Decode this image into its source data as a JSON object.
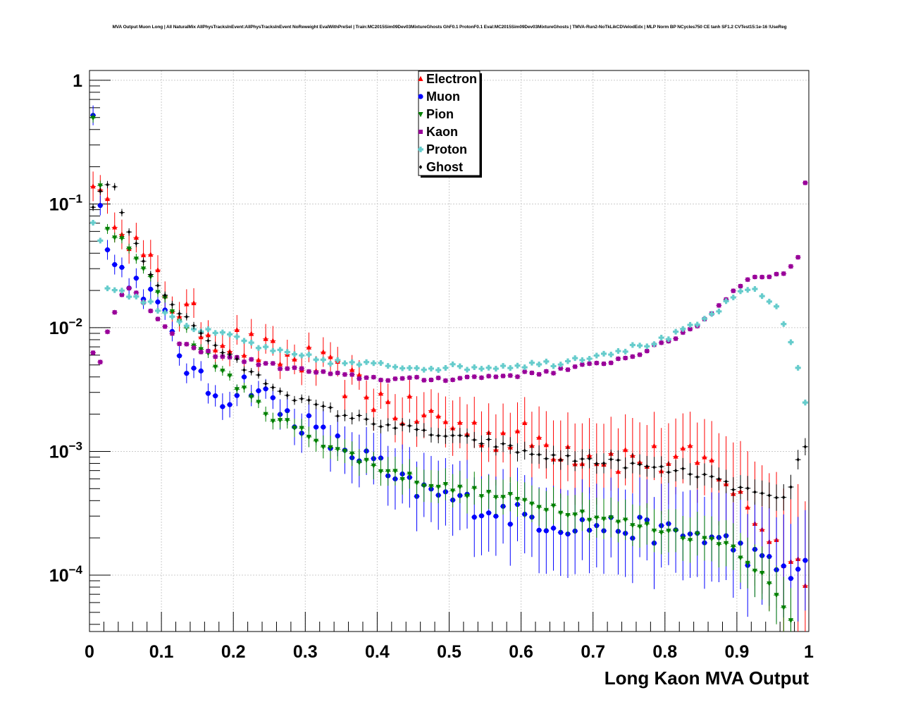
{
  "chart_data": {
    "type": "scatter",
    "title": "MVA Output Muon Long | All NaturalMix AllPhysTracksInEvent:AllPhysTracksInEvent NoReweight EvalWithPreSel | Train:MC2015Sim09Dev03MixtureGhosts GhF0.1 ProtonF0.1 Eval:MC2015Sim09Dev03MixtureGhosts | TMVA-Run2-NoTkLikCDVelodEdx | MLP Norm BP NCycles750 CE tanh SF1.2 CVTest15:1e-16 !UseReg",
    "xlabel": "Long Kaon MVA Output",
    "ylabel": "",
    "xlim": [
      0,
      1
    ],
    "ylim": [
      3.5e-05,
      1.2
    ],
    "y_scale": "log",
    "x_ticks": [
      "0",
      "0.1",
      "0.2",
      "0.3",
      "0.4",
      "0.5",
      "0.6",
      "0.7",
      "0.8",
      "0.9",
      "1"
    ],
    "y_ticks": [
      {
        "value": 1,
        "base": "1",
        "exp": ""
      },
      {
        "value": 0.1,
        "base": "10",
        "exp": "−1"
      },
      {
        "value": 0.01,
        "base": "10",
        "exp": "−2"
      },
      {
        "value": 0.001,
        "base": "10",
        "exp": "−3"
      },
      {
        "value": 0.0001,
        "base": "10",
        "exp": "−4"
      }
    ],
    "grid": true,
    "legend_position": "top-center",
    "series": [
      {
        "name": "Electron",
        "color": "#ff0000",
        "marker": "triangle-up",
        "knots": [
          [
            0.005,
            0.18
          ],
          [
            0.02,
            0.08
          ],
          [
            0.04,
            0.09
          ],
          [
            0.06,
            0.05
          ],
          [
            0.08,
            0.033
          ],
          [
            0.1,
            0.022
          ],
          [
            0.12,
            0.015
          ],
          [
            0.15,
            0.011
          ],
          [
            0.18,
            0.0085
          ],
          [
            0.2,
            0.0078
          ],
          [
            0.22,
            0.007
          ],
          [
            0.25,
            0.006
          ],
          [
            0.28,
            0.0055
          ],
          [
            0.3,
            0.0055
          ],
          [
            0.33,
            0.0045
          ],
          [
            0.36,
            0.0036
          ],
          [
            0.4,
            0.0027
          ],
          [
            0.43,
            0.0021
          ],
          [
            0.47,
            0.0019
          ],
          [
            0.5,
            0.0017
          ],
          [
            0.55,
            0.0014
          ],
          [
            0.6,
            0.0013
          ],
          [
            0.65,
            0.0011
          ],
          [
            0.7,
            0.00095
          ],
          [
            0.75,
            0.00088
          ],
          [
            0.8,
            0.00085
          ],
          [
            0.85,
            0.0008
          ],
          [
            0.88,
            0.0007
          ],
          [
            0.9,
            0.00042
          ],
          [
            0.93,
            0.00028
          ],
          [
            0.96,
            0.00016
          ],
          [
            0.99,
            0.00011
          ]
        ],
        "spread": 0.14,
        "err": 0.12
      },
      {
        "name": "Muon",
        "color": "#0000ff",
        "marker": "circle",
        "knots": [
          [
            0.005,
            0.65
          ],
          [
            0.015,
            0.1
          ],
          [
            0.025,
            0.04
          ],
          [
            0.04,
            0.03
          ],
          [
            0.06,
            0.024
          ],
          [
            0.08,
            0.02
          ],
          [
            0.1,
            0.013
          ],
          [
            0.11,
            0.01
          ],
          [
            0.13,
            0.0055
          ],
          [
            0.15,
            0.0038
          ],
          [
            0.17,
            0.003
          ],
          [
            0.19,
            0.0027
          ],
          [
            0.21,
            0.0033
          ],
          [
            0.22,
            0.0037
          ],
          [
            0.24,
            0.003
          ],
          [
            0.27,
            0.002
          ],
          [
            0.3,
            0.0017
          ],
          [
            0.33,
            0.00125
          ],
          [
            0.36,
            0.001
          ],
          [
            0.4,
            0.0008
          ],
          [
            0.42,
            0.00058
          ],
          [
            0.45,
            0.0005
          ],
          [
            0.48,
            0.00045
          ],
          [
            0.5,
            0.00042
          ],
          [
            0.55,
            0.00035
          ],
          [
            0.6,
            0.0003
          ],
          [
            0.65,
            0.00026
          ],
          [
            0.7,
            0.00025
          ],
          [
            0.75,
            0.00024
          ],
          [
            0.8,
            0.00022
          ],
          [
            0.85,
            0.00021
          ],
          [
            0.9,
            0.00017
          ],
          [
            0.94,
            0.00012
          ],
          [
            0.97,
            0.00011
          ],
          [
            0.99,
            0.00011
          ]
        ],
        "spread": 0.1,
        "err": 0.08
      },
      {
        "name": "Pion",
        "color": "#008000",
        "marker": "triangle-down",
        "knots": [
          [
            0.005,
            0.5
          ],
          [
            0.02,
            0.07
          ],
          [
            0.04,
            0.052
          ],
          [
            0.06,
            0.04
          ],
          [
            0.08,
            0.026
          ],
          [
            0.1,
            0.019
          ],
          [
            0.12,
            0.013
          ],
          [
            0.15,
            0.007
          ],
          [
            0.18,
            0.0048
          ],
          [
            0.2,
            0.0037
          ],
          [
            0.22,
            0.0028
          ],
          [
            0.25,
            0.002
          ],
          [
            0.28,
            0.0016
          ],
          [
            0.3,
            0.0014
          ],
          [
            0.35,
            0.001
          ],
          [
            0.4,
            0.00075
          ],
          [
            0.45,
            0.0006
          ],
          [
            0.5,
            0.0005
          ],
          [
            0.55,
            0.00045
          ],
          [
            0.6,
            0.0004
          ],
          [
            0.65,
            0.00035
          ],
          [
            0.7,
            0.0003
          ],
          [
            0.75,
            0.00026
          ],
          [
            0.8,
            0.00023
          ],
          [
            0.85,
            0.0002
          ],
          [
            0.88,
            0.00019
          ],
          [
            0.9,
            0.00016
          ],
          [
            0.93,
            0.00011
          ],
          [
            0.96,
            6e-05
          ],
          [
            0.99,
            3e-05
          ]
        ],
        "spread": 0.04,
        "err": 0.04
      },
      {
        "name": "Kaon",
        "color": "#990099",
        "marker": "square",
        "knots": [
          [
            0.005,
            0.0065
          ],
          [
            0.015,
            0.0055
          ],
          [
            0.025,
            0.0095
          ],
          [
            0.045,
            0.018
          ],
          [
            0.06,
            0.021
          ],
          [
            0.08,
            0.015
          ],
          [
            0.1,
            0.0105
          ],
          [
            0.12,
            0.008
          ],
          [
            0.15,
            0.0065
          ],
          [
            0.2,
            0.0057
          ],
          [
            0.25,
            0.005
          ],
          [
            0.3,
            0.0045
          ],
          [
            0.35,
            0.0041
          ],
          [
            0.4,
            0.0039
          ],
          [
            0.45,
            0.0038
          ],
          [
            0.5,
            0.0039
          ],
          [
            0.55,
            0.004
          ],
          [
            0.6,
            0.0042
          ],
          [
            0.65,
            0.0045
          ],
          [
            0.7,
            0.005
          ],
          [
            0.75,
            0.0058
          ],
          [
            0.8,
            0.0075
          ],
          [
            0.85,
            0.011
          ],
          [
            0.88,
            0.016
          ],
          [
            0.9,
            0.022
          ],
          [
            0.93,
            0.026
          ],
          [
            0.96,
            0.027
          ],
          [
            0.975,
            0.03
          ],
          [
            0.985,
            0.038
          ],
          [
            0.995,
            0.15
          ]
        ],
        "spread": 0.02,
        "err": 0.02
      },
      {
        "name": "Proton",
        "color": "#66cccc",
        "marker": "cross",
        "knots": [
          [
            0.005,
            0.072
          ],
          [
            0.015,
            0.05
          ],
          [
            0.025,
            0.022
          ],
          [
            0.035,
            0.02
          ],
          [
            0.05,
            0.019
          ],
          [
            0.07,
            0.017
          ],
          [
            0.09,
            0.015
          ],
          [
            0.12,
            0.012
          ],
          [
            0.15,
            0.0095
          ],
          [
            0.2,
            0.0085
          ],
          [
            0.25,
            0.0065
          ],
          [
            0.3,
            0.0058
          ],
          [
            0.35,
            0.0052
          ],
          [
            0.4,
            0.005
          ],
          [
            0.45,
            0.0048
          ],
          [
            0.5,
            0.0048
          ],
          [
            0.55,
            0.0048
          ],
          [
            0.6,
            0.005
          ],
          [
            0.65,
            0.0052
          ],
          [
            0.7,
            0.006
          ],
          [
            0.75,
            0.0068
          ],
          [
            0.8,
            0.008
          ],
          [
            0.85,
            0.011
          ],
          [
            0.9,
            0.018
          ],
          [
            0.92,
            0.021
          ],
          [
            0.94,
            0.018
          ],
          [
            0.96,
            0.013
          ],
          [
            0.97,
            0.009
          ],
          [
            0.98,
            0.0065
          ],
          [
            0.99,
            0.0036
          ],
          [
            0.997,
            0.0021
          ]
        ],
        "spread": 0.025,
        "err": 0.02
      },
      {
        "name": "Ghost",
        "color": "#000000",
        "marker": "diamond",
        "knots": [
          [
            0.005,
            0.1
          ],
          [
            0.025,
            0.15
          ],
          [
            0.035,
            0.13
          ],
          [
            0.05,
            0.07
          ],
          [
            0.065,
            0.045
          ],
          [
            0.08,
            0.032
          ],
          [
            0.1,
            0.02
          ],
          [
            0.12,
            0.0145
          ],
          [
            0.15,
            0.0095
          ],
          [
            0.18,
            0.0068
          ],
          [
            0.2,
            0.0055
          ],
          [
            0.22,
            0.0045
          ],
          [
            0.25,
            0.0035
          ],
          [
            0.3,
            0.0025
          ],
          [
            0.35,
            0.002
          ],
          [
            0.4,
            0.0017
          ],
          [
            0.45,
            0.0015
          ],
          [
            0.5,
            0.0013
          ],
          [
            0.55,
            0.0012
          ],
          [
            0.6,
            0.001
          ],
          [
            0.65,
            0.00088
          ],
          [
            0.7,
            0.00085
          ],
          [
            0.75,
            0.00078
          ],
          [
            0.8,
            0.00071
          ],
          [
            0.85,
            0.00065
          ],
          [
            0.88,
            0.00055
          ],
          [
            0.9,
            0.00051
          ],
          [
            0.93,
            0.00046
          ],
          [
            0.95,
            0.0004
          ],
          [
            0.97,
            0.0004
          ],
          [
            0.98,
            0.0006
          ],
          [
            0.99,
            0.00115
          ]
        ],
        "spread": 0.03,
        "err": 0.03
      }
    ]
  }
}
